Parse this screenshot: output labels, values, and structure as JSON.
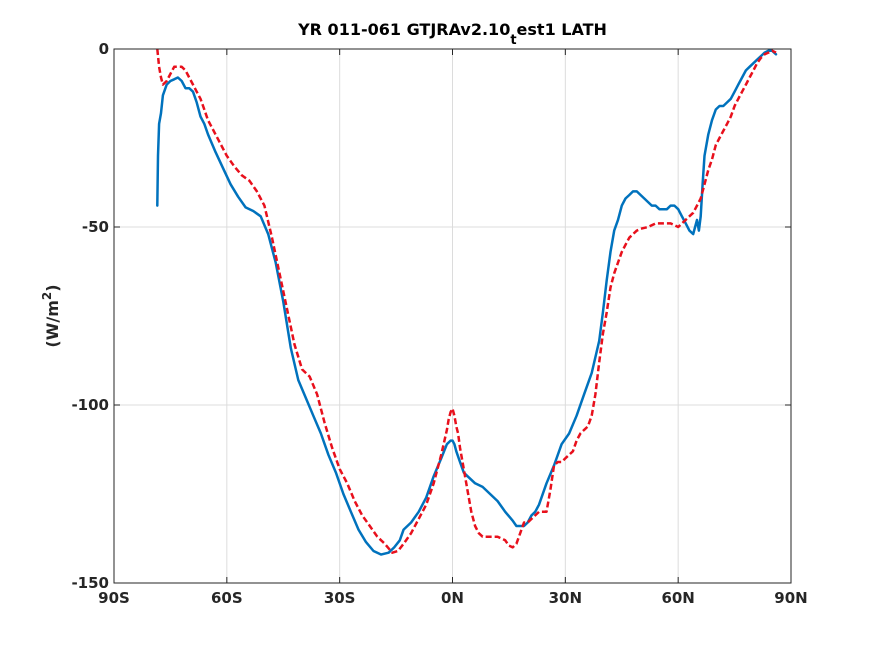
{
  "chart_data": {
    "type": "line",
    "title_main": "YR 011-061 GTJRAv2.10",
    "title_sub": "t",
    "title_tail": "est1 LATH",
    "ylabel_main": "(W/m",
    "ylabel_sup": "2",
    "ylabel_tail": ")",
    "xlim": [
      -90,
      90
    ],
    "ylim": [
      -150,
      0
    ],
    "grid": true,
    "x_ticks": [
      {
        "value": -90,
        "label": "90S"
      },
      {
        "value": -60,
        "label": "60S"
      },
      {
        "value": -30,
        "label": "30S"
      },
      {
        "value": 0,
        "label": "0N"
      },
      {
        "value": 30,
        "label": "30N"
      },
      {
        "value": 60,
        "label": "60N"
      },
      {
        "value": 90,
        "label": "90N"
      }
    ],
    "y_ticks": [
      {
        "value": 0,
        "label": "0"
      },
      {
        "value": -50,
        "label": "-50"
      },
      {
        "value": -100,
        "label": "-100"
      },
      {
        "value": -150,
        "label": "-150"
      }
    ],
    "series": [
      {
        "color": "#0072bd",
        "dash": "solid",
        "x": [
          -78.5,
          -78.3,
          -78,
          -77.5,
          -77,
          -76,
          -75,
          -74,
          -73,
          -72,
          -71,
          -70,
          -69,
          -68,
          -67,
          -66,
          -65,
          -63,
          -61,
          -59,
          -57,
          -55,
          -53,
          -51,
          -49,
          -47,
          -45,
          -43,
          -41,
          -39,
          -37,
          -35,
          -33,
          -31,
          -29,
          -27,
          -25,
          -23,
          -21,
          -19,
          -17,
          -15.5,
          -14,
          -13,
          -11,
          -9,
          -7,
          -5,
          -3,
          -1.5,
          -0.5,
          0,
          0.5,
          1,
          2,
          3,
          4,
          6,
          8,
          10,
          12,
          14,
          16,
          17,
          18,
          19,
          20,
          21,
          22,
          23,
          25,
          27,
          29,
          31,
          33,
          35,
          37,
          39,
          40,
          41,
          42,
          43,
          44,
          45,
          46,
          47,
          48,
          49,
          50,
          51,
          52,
          53,
          54,
          55,
          56,
          57,
          58,
          59,
          60,
          61,
          62,
          63,
          64,
          64.5,
          65,
          65.5,
          66,
          66.5,
          67,
          68,
          69,
          70,
          71,
          72,
          73,
          74,
          75,
          76,
          77,
          78,
          79,
          80,
          81,
          82,
          83,
          84,
          85,
          86
        ],
        "y": [
          -44,
          -30,
          -21,
          -18,
          -13,
          -10,
          -9,
          -8.5,
          -8,
          -9,
          -11,
          -11,
          -12,
          -15,
          -19,
          -21,
          -24,
          -29,
          -33.5,
          -38,
          -41.5,
          -44.5,
          -45.5,
          -47,
          -52,
          -60,
          -71,
          -84,
          -93,
          -98,
          -103,
          -108,
          -114,
          -119,
          -125,
          -130,
          -135,
          -138.5,
          -141,
          -142,
          -141.5,
          -140,
          -138,
          -135,
          -133,
          -130,
          -126,
          -120,
          -115,
          -111,
          -110,
          -110,
          -111,
          -113,
          -116,
          -119,
          -120,
          -122,
          -123,
          -125,
          -127,
          -130,
          -132.5,
          -134,
          -134,
          -134,
          -133,
          -131,
          -130,
          -128,
          -122,
          -117,
          -111,
          -108,
          -103,
          -97,
          -91,
          -82,
          -74,
          -65,
          -57,
          -51,
          -48,
          -44,
          -42,
          -41,
          -40,
          -40,
          -41,
          -42,
          -43,
          -44,
          -44,
          -45,
          -45,
          -45,
          -44,
          -44,
          -45,
          -47,
          -49,
          -51,
          -52,
          -50,
          -48,
          -51,
          -47,
          -38,
          -30,
          -24,
          -20,
          -17,
          -16,
          -16,
          -15,
          -14,
          -12,
          -10,
          -8,
          -6,
          -5,
          -4,
          -3,
          -2,
          -1,
          -0.5,
          -0.5,
          -1.5
        ]
      },
      {
        "color": "#e8101c",
        "dash": "dashed",
        "x": [
          -78.5,
          -78,
          -77.5,
          -77,
          -76,
          -75,
          -74,
          -73,
          -72,
          -71,
          -70,
          -69,
          -68,
          -67,
          -66,
          -65,
          -64,
          -62,
          -60,
          -58,
          -56,
          -54,
          -52,
          -50,
          -48,
          -46,
          -44,
          -42,
          -40,
          -38,
          -36,
          -34,
          -32,
          -30,
          -28,
          -26,
          -24,
          -22,
          -20,
          -18,
          -16,
          -14.5,
          -13,
          -11,
          -9,
          -7,
          -5,
          -3,
          -1.5,
          -1,
          -0.5,
          0,
          0.5,
          1,
          1.5,
          2,
          3,
          4,
          5,
          6,
          7,
          8,
          9,
          10,
          11,
          12,
          13,
          14,
          15,
          16,
          17,
          18,
          19,
          20,
          21,
          22,
          23,
          24,
          25,
          26,
          27,
          28,
          29,
          30,
          31,
          32,
          33,
          34,
          35,
          36,
          37,
          38,
          39,
          40,
          41,
          42,
          43,
          44,
          45,
          46,
          47,
          48,
          49,
          50,
          52,
          54,
          56,
          58,
          60,
          61,
          62,
          63,
          64,
          65,
          66,
          67,
          68,
          69,
          70,
          71,
          72,
          73,
          74,
          75,
          76,
          77,
          78,
          79,
          80,
          81,
          82,
          83,
          84,
          85,
          86
        ],
        "y": [
          0,
          -5,
          -8,
          -10,
          -9,
          -7,
          -5,
          -5,
          -5,
          -6,
          -8,
          -10,
          -12,
          -14,
          -17,
          -20,
          -22,
          -26,
          -30,
          -33,
          -35.5,
          -37,
          -40,
          -44,
          -53,
          -63,
          -73,
          -83,
          -90,
          -92,
          -97,
          -105,
          -112,
          -118,
          -122,
          -127,
          -131,
          -134,
          -137,
          -139,
          -141.5,
          -141,
          -139,
          -136,
          -132,
          -128,
          -122,
          -114,
          -107,
          -104,
          -102,
          -101,
          -103,
          -106,
          -108,
          -112,
          -118,
          -124,
          -130,
          -134,
          -136,
          -137,
          -137,
          -137,
          -137,
          -137,
          -137.5,
          -138,
          -139.5,
          -140,
          -139,
          -136,
          -133,
          -133,
          -132,
          -131,
          -130,
          -130,
          -130,
          -124,
          -117,
          -116,
          -116,
          -115,
          -114,
          -113,
          -110,
          -108,
          -107,
          -106,
          -103,
          -97,
          -88,
          -80,
          -74,
          -67,
          -63,
          -60,
          -57,
          -55,
          -53,
          -52,
          -51,
          -50.5,
          -50,
          -49,
          -49,
          -49,
          -50,
          -49,
          -48,
          -47,
          -46,
          -44,
          -42,
          -38,
          -34,
          -31,
          -27,
          -25,
          -23,
          -21,
          -19,
          -16,
          -14,
          -12,
          -10,
          -8,
          -6,
          -4,
          -2.5,
          -1.5,
          -1,
          -0.5,
          -1
        ]
      }
    ]
  }
}
